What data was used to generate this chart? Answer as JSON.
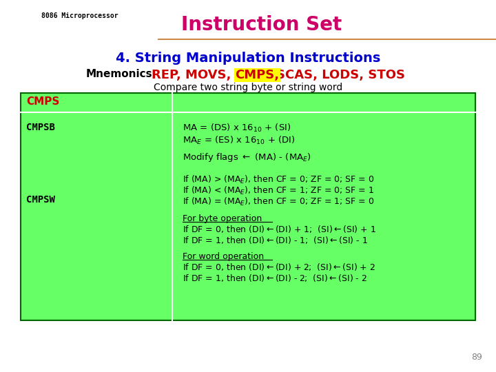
{
  "title": "Instruction Set",
  "subtitle": "4. String Manipulation Instructions",
  "header_label": "8086 Microprocessor",
  "mnemonics_label": "Mnemonics:",
  "mnemonics_normal": "REP, MOVS,",
  "mnemonics_highlight": "CMPS,",
  "mnemonics_after": "SCAS, LODS, STOS",
  "compare_text": "Compare two string byte or string word",
  "table_header": "CMPS",
  "row1_label": "CMPSB",
  "row2_label": "CMPSW",
  "bg_color": "#ffffff",
  "table_bg": "#66ff66",
  "table_border": "#006600",
  "title_color": "#cc0066",
  "subtitle_color": "#0000cc",
  "mnemonic_color": "#cc0000",
  "highlight_color": "#ffff00",
  "header_color": "#cc0000",
  "page_num": "89",
  "curve_color": "#cc8844"
}
